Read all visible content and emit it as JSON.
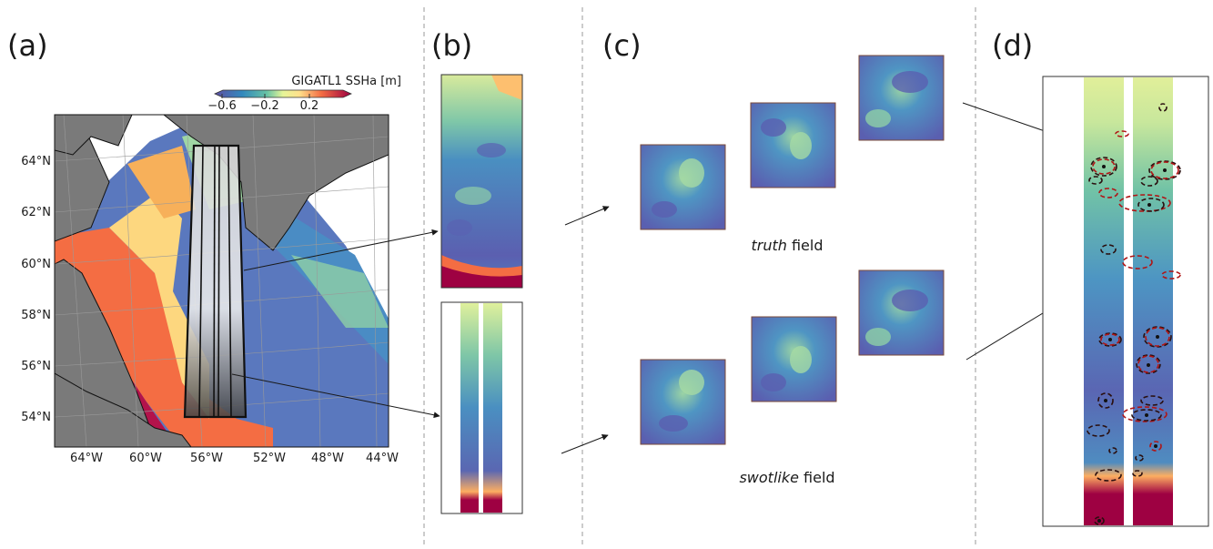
{
  "panels": {
    "a": "(a)",
    "b": "(b)",
    "c": "(c)",
    "d": "(d)"
  },
  "colorbar": {
    "title": "GIGATL1 SSHa [m]",
    "ticks": [
      "−0.6",
      "−0.2",
      "0.2"
    ]
  },
  "map": {
    "lat_labels": [
      "64°N",
      "62°N",
      "60°N",
      "58°N",
      "56°N",
      "54°N"
    ],
    "lon_labels": [
      "64°W",
      "60°W",
      "56°W",
      "52°W",
      "48°W",
      "44°W"
    ]
  },
  "captions": {
    "truth_em": "truth",
    "truth_rest": " field",
    "swot_em": "swotlike",
    "swot_rest": " field"
  },
  "colors": {
    "land": "#7a7a7a",
    "divider": "#9a9a9a",
    "eddy_dark": "#2a0f0f",
    "eddy_red": "#b01515"
  }
}
